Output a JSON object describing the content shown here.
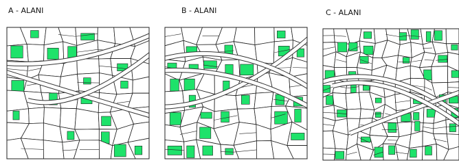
{
  "panels": [
    {
      "label": "A - ALANI"
    },
    {
      "label": "B - ALANI"
    },
    {
      "label": "C - ALANI"
    }
  ]
}
